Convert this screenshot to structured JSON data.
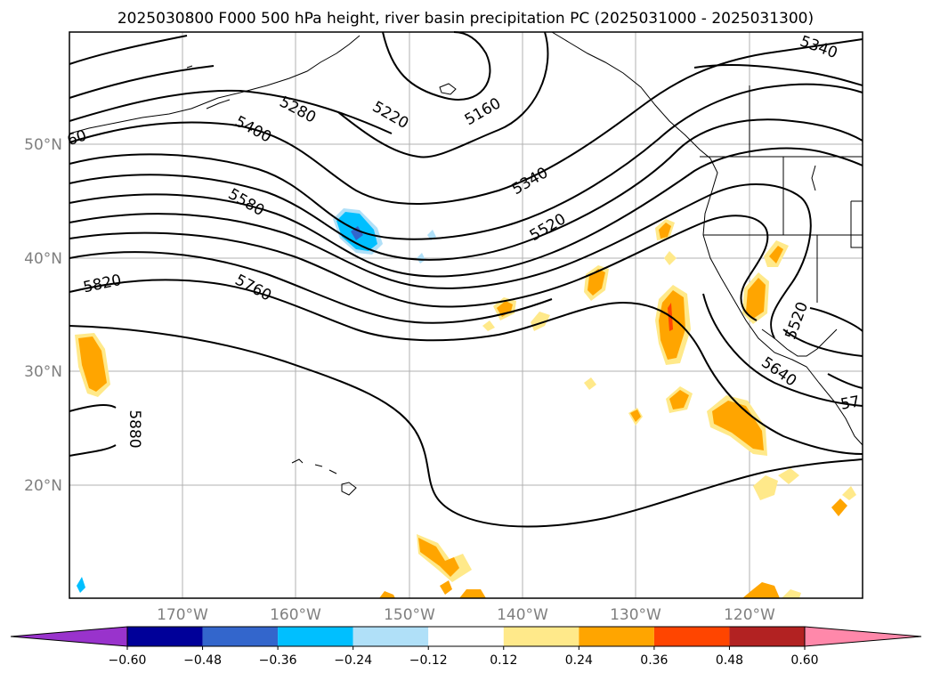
{
  "title": "2025030800 F000 500 hPa height, river basin precipitation PC (2025031000 - 2025031300)",
  "lat_labels": [
    "50°N",
    "40°N",
    "30°N",
    "20°N"
  ],
  "lon_labels": [
    "170°W",
    "160°W",
    "150°W",
    "140°W",
    "130°W",
    "120°W"
  ],
  "contour_labels": [
    "5160",
    "5220",
    "5280",
    "5340",
    "5340",
    "5400",
    "5520",
    "5580",
    "5760",
    "5820",
    "5880",
    "5640",
    "5520",
    "60",
    "57"
  ],
  "colorbar": {
    "colors": [
      "#9933cc",
      "#000099",
      "#3366cc",
      "#00bfff",
      "#b0e0f8",
      "#ffffff",
      "#ffe98a",
      "#ffa500",
      "#ff4500",
      "#b22222",
      "#ff88aa"
    ],
    "ticks": [
      "−0.60",
      "−0.48",
      "−0.36",
      "−0.24",
      "−0.12",
      "0.12",
      "0.24",
      "0.36",
      "0.48",
      "0.60"
    ]
  },
  "colors": {
    "positive": "#ffa500",
    "positive_light": "#ffe98a",
    "negative": "#00bfff",
    "negative_light": "#b0e0f8",
    "contour": "#000000",
    "grid": "#b0b0b0"
  }
}
